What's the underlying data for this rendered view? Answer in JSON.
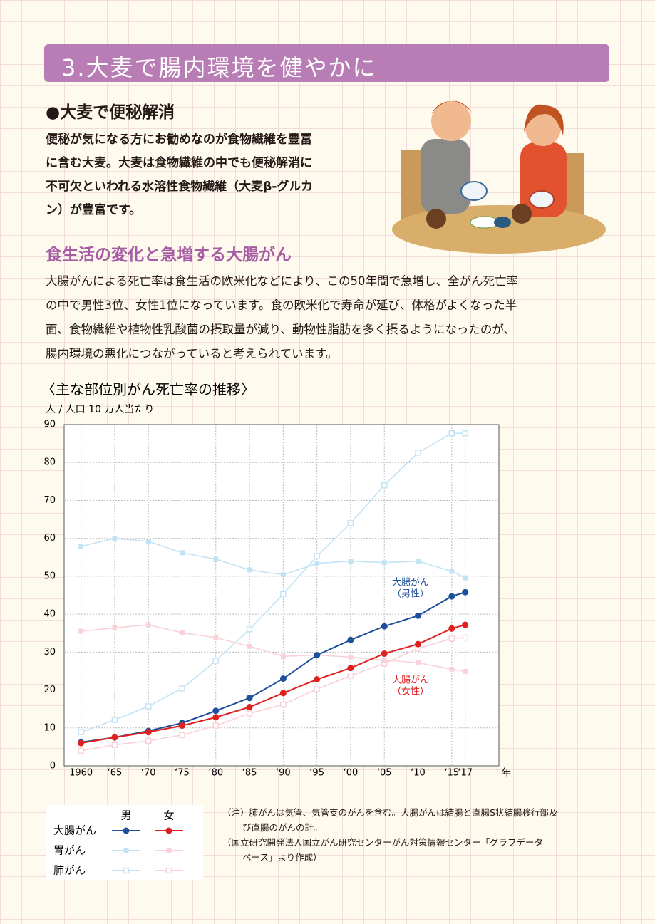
{
  "header": {
    "title": "3.大麦で腸内環境を健やかに"
  },
  "section1": {
    "heading": "●大麦で便秘解消",
    "lines": [
      "便秘が気になる方にお勧めなのが食物繊維を豊富",
      "に含む大麦。大麦は食物繊維の中でも便秘解消に",
      "不可欠といわれる水溶性食物繊維（大麦β-グルカ",
      "ン）が豊富です。"
    ]
  },
  "section2": {
    "heading": "食生活の変化と急増する大腸がん",
    "lines": [
      "大腸がんによる死亡率は食生活の欧米化などにより、この50年間で急増し、全がん死亡率",
      "の中で男性3位、女性1位になっています。食の欧米化で寿命が延び、体格がよくなった半",
      "面、食物繊維や植物性乳酸菌の摂取量が減り、動物性脂肪を多く摂るようになったのが、",
      "腸内環境の悪化につながっていると考えられています。"
    ]
  },
  "chart_data": {
    "type": "line",
    "title": "〈主な部位別がん死亡率の推移〉",
    "y_label": "人 / 人口 10 万人当たり",
    "x_label": "年",
    "x": [
      1960,
      1965,
      1970,
      1975,
      1980,
      1985,
      1990,
      1995,
      2000,
      2005,
      2010,
      2015,
      2017
    ],
    "xlim": [
      1957.5,
      2022
    ],
    "xticks": [
      1960,
      {
        "value": 1965,
        "label": "‘65"
      },
      {
        "value": 1970,
        "label": "‘70"
      },
      {
        "value": 1975,
        "label": "‘75"
      },
      {
        "value": 1980,
        "label": "‘80"
      },
      {
        "value": 1985,
        "label": "‘85"
      },
      {
        "value": 1990,
        "label": "‘90"
      },
      {
        "value": 1995,
        "label": "‘95"
      },
      {
        "value": 2000,
        "label": "‘00"
      },
      {
        "value": 2005,
        "label": "‘05"
      },
      {
        "value": 2010,
        "label": "‘10"
      },
      {
        "value": 2015,
        "label": "‘15"
      },
      {
        "value": 2017,
        "label": "‘17"
      }
    ],
    "ylim": [
      0,
      90
    ],
    "yticks": [
      0,
      10,
      20,
      30,
      40,
      50,
      60,
      70,
      80,
      90
    ],
    "grid": true,
    "legend_columns": [
      "男",
      "女"
    ],
    "series": [
      {
        "name": "大腸がん",
        "lines": [
          {
            "color": "#1d4f9c",
            "marker": "circle",
            "values": [
              6.2,
              7.5,
              9.2,
              11.3,
              14.5,
              17.9,
              23.0,
              29.2,
              33.2,
              36.8,
              39.6,
              44.7,
              45.8
            ]
          },
          {
            "color": "#e0201f",
            "marker": "circle",
            "values": [
              6.0,
              7.5,
              8.9,
              10.6,
              12.8,
              15.5,
              19.2,
              22.8,
              25.8,
              29.6,
              32.1,
              36.2,
              37.2
            ]
          }
        ]
      },
      {
        "name": "胃がん",
        "lines": [
          {
            "color": "#c3e3f5",
            "marker": "square",
            "values": [
              57.9,
              60.0,
              59.2,
              56.2,
              54.5,
              51.7,
              50.4,
              53.4,
              54.0,
              53.6,
              54.0,
              51.3,
              49.6
            ]
          },
          {
            "color": "#f8d2d8",
            "marker": "square",
            "values": [
              35.5,
              36.4,
              37.2,
              35.1,
              33.8,
              31.5,
              28.9,
              29.2,
              28.7,
              27.9,
              27.2,
              25.5,
              24.9
            ]
          }
        ]
      },
      {
        "name": "肺がん",
        "lines": [
          {
            "color": "#c3e3f5",
            "marker": "hollow-square",
            "values": [
              8.9,
              12.1,
              15.7,
              20.4,
              27.7,
              36.0,
              45.3,
              55.3,
              64.0,
              74.0,
              82.6,
              87.7,
              87.7
            ]
          },
          {
            "color": "#f8d2d8",
            "marker": "hollow-square",
            "values": [
              4.0,
              5.5,
              6.6,
              8.1,
              10.6,
              13.8,
              16.2,
              20.2,
              23.8,
              27.0,
              30.9,
              33.6,
              33.8
            ]
          }
        ]
      }
    ],
    "annotations": [
      {
        "lines": [
          "大腸がん",
          "（男性）"
        ],
        "color": "#1d4f9c"
      },
      {
        "lines": [
          "大腸がん",
          "（女性）"
        ],
        "color": "#e0201f"
      }
    ]
  },
  "notes": [
    "（注）肺がんは気管、気管支のがんを含む。大腸がんは結腸と直腸S状結腸移行部及",
    "び直腸のがんの計。",
    "（国立研究開発法人国立がん研究センターがん対策情報センター「グラフデータ",
    "ベース」より作成）"
  ]
}
